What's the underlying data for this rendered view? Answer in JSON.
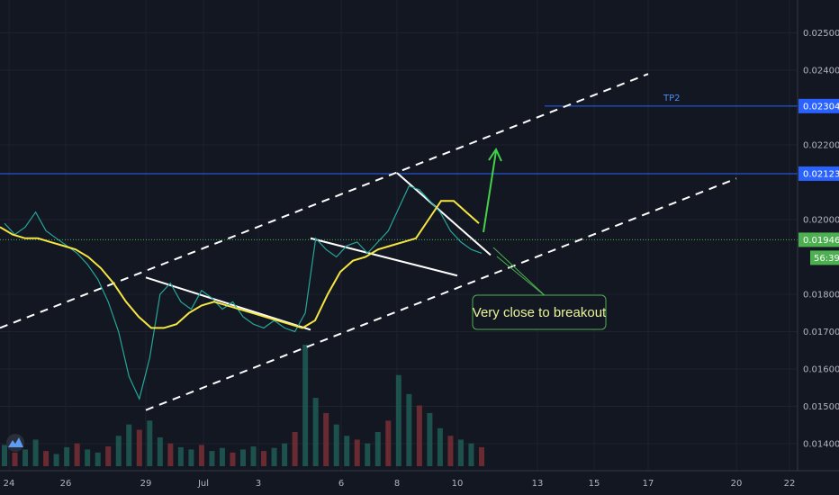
{
  "chart_data": {
    "type": "line",
    "title": "",
    "price_axis": {
      "min": 0.0133,
      "max": 0.0263,
      "ticks": [
        "0.02500",
        "0.02400",
        "0.02200",
        "0.02000",
        "0.01800",
        "0.01700",
        "0.01600",
        "0.01500",
        "0.01400"
      ]
    },
    "time_axis": {
      "ticks": [
        "24",
        "26",
        "29",
        "Jul",
        "3",
        "6",
        "8",
        "10",
        "13",
        "15",
        "17",
        "20",
        "22"
      ]
    },
    "horizontal_levels": [
      {
        "name": "TP2",
        "price": 0.02304,
        "label": "0.02304",
        "color": "#2962ff"
      },
      {
        "name": "",
        "price": 0.02123,
        "label": "0.02123",
        "color": "#2962ff"
      },
      {
        "name": "",
        "price": 0.01946,
        "label": "0.01946",
        "color": "#4caf50",
        "style": "dotted"
      }
    ],
    "countdown_label": "56:39",
    "moving_average": {
      "color": "#f5e642",
      "values": [
        0.0198,
        0.0196,
        0.0195,
        0.0195,
        0.0194,
        0.0193,
        0.0192,
        0.019,
        0.0187,
        0.0183,
        0.0178,
        0.0174,
        0.0171,
        0.0171,
        0.0172,
        0.0175,
        0.0177,
        0.0178,
        0.0177,
        0.0176,
        0.0175,
        0.0174,
        0.0173,
        0.0172,
        0.0171,
        0.0173,
        0.018,
        0.0186,
        0.0189,
        0.019,
        0.0192,
        0.0193,
        0.0194,
        0.0195,
        0.02,
        0.0205,
        0.0205,
        0.0202,
        0.0199
      ]
    },
    "price_series": {
      "color": "#26a69a",
      "values": [
        0.0199,
        0.0196,
        0.0198,
        0.0202,
        0.0197,
        0.0195,
        0.0193,
        0.0191,
        0.0188,
        0.0184,
        0.0178,
        0.017,
        0.0158,
        0.0152,
        0.0163,
        0.018,
        0.0183,
        0.0178,
        0.0176,
        0.0181,
        0.0179,
        0.0176,
        0.0178,
        0.0174,
        0.0172,
        0.0171,
        0.0173,
        0.0171,
        0.017,
        0.0175,
        0.0195,
        0.0192,
        0.019,
        0.0193,
        0.0194,
        0.0191,
        0.0194,
        0.0197,
        0.0203,
        0.0209,
        0.0208,
        0.0205,
        0.0202,
        0.0197,
        0.0194,
        0.0192,
        0.0191
      ]
    },
    "volume": [
      28,
      18,
      22,
      35,
      20,
      16,
      25,
      30,
      22,
      18,
      26,
      40,
      55,
      48,
      60,
      38,
      30,
      25,
      22,
      28,
      20,
      24,
      18,
      22,
      26,
      20,
      24,
      30,
      45,
      160,
      90,
      70,
      55,
      40,
      35,
      30,
      45,
      60,
      120,
      95,
      80,
      70,
      50,
      40,
      35,
      30,
      25
    ],
    "trendlines": [
      {
        "name": "channel-upper",
        "dashed": true,
        "from": [
          "0",
          0.0171
        ],
        "to": [
          "17",
          0.0239
        ]
      },
      {
        "name": "channel-lower",
        "dashed": true,
        "from": [
          "29",
          0.0149
        ],
        "to": [
          "20",
          0.0211
        ]
      },
      {
        "name": "wedge-1",
        "dashed": false,
        "from": [
          "29",
          0.01845
        ],
        "to": [
          "5",
          0.01705
        ]
      },
      {
        "name": "wedge-2",
        "dashed": false,
        "from": [
          "5",
          0.0195
        ],
        "to": [
          "10",
          0.0185
        ]
      },
      {
        "name": "wedge-3",
        "dashed": false,
        "from": [
          "8",
          0.02125
        ],
        "to": [
          "11",
          0.01905
        ]
      }
    ],
    "annotations": [
      {
        "text": "TP2",
        "color": "#4b8ef5"
      },
      {
        "text": "Very close to breakout",
        "color": "#e9f59a",
        "border": "#4caf50"
      }
    ],
    "logo": "tradingview-logo-icon"
  }
}
